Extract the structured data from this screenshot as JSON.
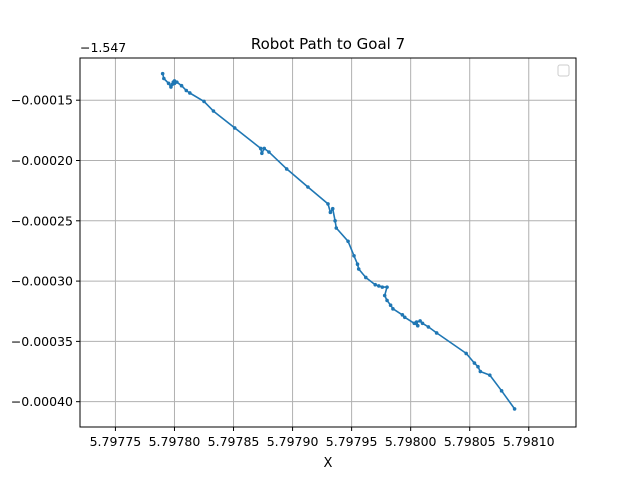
{
  "chart_data": {
    "type": "line",
    "title": "Robot Path to Goal 7",
    "xlabel": "X",
    "ylabel": "",
    "y_offset_label": "−1.547",
    "xlim": [
      5.79772,
      5.79814
    ],
    "ylim": [
      -0.000421,
      -0.000115
    ],
    "x_ticks": [
      5.79775,
      5.7978,
      5.79785,
      5.7979,
      5.79795,
      5.798,
      5.79805,
      5.7981
    ],
    "x_tick_labels": [
      "5.79775",
      "5.79780",
      "5.79785",
      "5.79790",
      "5.79795",
      "5.79800",
      "5.79805",
      "5.79810"
    ],
    "y_ticks": [
      -0.00015,
      -0.0002,
      -0.00025,
      -0.0003,
      -0.00035,
      -0.0004
    ],
    "y_tick_labels": [
      "−0.00015",
      "−0.00020",
      "−0.00025",
      "−0.00030",
      "−0.00035",
      "−0.00040"
    ],
    "grid": true,
    "legend": "top-right",
    "colors": {
      "series": "#1f77b4",
      "grid": "#b0b0b0"
    },
    "series": [
      {
        "x": [
          5.79779,
          5.797791,
          5.797795,
          5.797797,
          5.797799,
          5.7978,
          5.797798,
          5.7978,
          5.797802,
          5.797806,
          5.79781,
          5.797813,
          5.797825,
          5.797833,
          5.797851,
          5.797873,
          5.797874,
          5.797876,
          5.79788,
          5.797895,
          5.797913,
          5.79793,
          5.797932,
          5.797934,
          5.797936,
          5.797937,
          5.797947,
          5.797952,
          5.797955,
          5.797956,
          5.797962,
          5.79797,
          5.797973,
          5.797976,
          5.79798,
          5.797978,
          5.79798,
          5.797983,
          5.797985,
          5.797993,
          5.797995,
          5.798003,
          5.798006,
          5.798005,
          5.798008,
          5.79801,
          5.798015,
          5.798022,
          5.798047,
          5.798054,
          5.798057,
          5.798059,
          5.798067,
          5.798077,
          5.798088
        ],
        "y": [
          -0.000128,
          -0.000132,
          -0.000136,
          -0.000139,
          -0.000135,
          -0.000136,
          -0.000137,
          -0.000134,
          -0.000135,
          -0.000138,
          -0.000142,
          -0.000144,
          -0.000151,
          -0.000159,
          -0.000173,
          -0.00019,
          -0.000194,
          -0.00019,
          -0.000193,
          -0.000207,
          -0.000222,
          -0.000236,
          -0.000243,
          -0.00024,
          -0.00025,
          -0.000256,
          -0.000267,
          -0.000279,
          -0.000286,
          -0.00029,
          -0.000297,
          -0.000303,
          -0.000304,
          -0.000305,
          -0.000305,
          -0.000312,
          -0.000316,
          -0.00032,
          -0.000323,
          -0.000328,
          -0.00033,
          -0.000335,
          -0.000337,
          -0.000334,
          -0.000333,
          -0.000335,
          -0.000338,
          -0.000343,
          -0.00036,
          -0.000368,
          -0.000371,
          -0.000375,
          -0.000378,
          -0.000391,
          -0.000406
        ]
      }
    ]
  }
}
